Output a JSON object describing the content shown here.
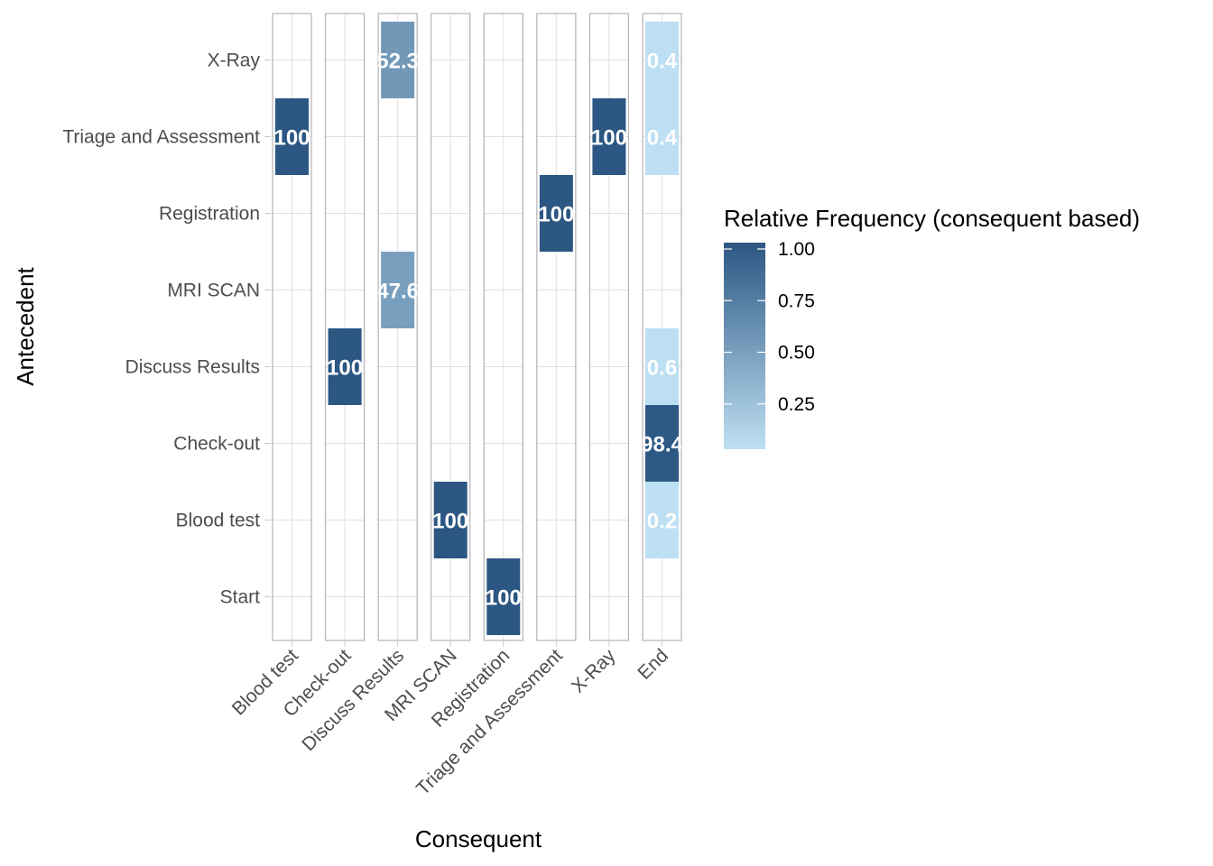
{
  "chart_data": {
    "type": "heatmap",
    "xlabel": "Consequent",
    "ylabel": "Antecedent",
    "x_categories": [
      "Blood test",
      "Check-out",
      "Discuss Results",
      "MRI SCAN",
      "Registration",
      "Triage and Assessment",
      "X-Ray",
      "End"
    ],
    "y_categories": [
      "Start",
      "Blood test",
      "Check-out",
      "Discuss Results",
      "MRI SCAN",
      "Registration",
      "Triage and Assessment",
      "X-Ray"
    ],
    "cells": [
      {
        "x": "Blood test",
        "y": "Triage and Assessment",
        "value": 1.0,
        "label": "100"
      },
      {
        "x": "Check-out",
        "y": "Discuss Results",
        "value": 1.0,
        "label": "100"
      },
      {
        "x": "Discuss Results",
        "y": "X-Ray",
        "value": 0.523,
        "label": "52.3"
      },
      {
        "x": "Discuss Results",
        "y": "MRI SCAN",
        "value": 0.476,
        "label": "47.6"
      },
      {
        "x": "MRI SCAN",
        "y": "Blood test",
        "value": 1.0,
        "label": "100"
      },
      {
        "x": "Registration",
        "y": "Start",
        "value": 1.0,
        "label": "100"
      },
      {
        "x": "Triage and Assessment",
        "y": "Registration",
        "value": 1.0,
        "label": "100"
      },
      {
        "x": "X-Ray",
        "y": "Triage and Assessment",
        "value": 1.0,
        "label": "100"
      },
      {
        "x": "End",
        "y": "X-Ray",
        "value": 0.004,
        "label": "0.4"
      },
      {
        "x": "End",
        "y": "Triage and Assessment",
        "value": 0.004,
        "label": "0.4"
      },
      {
        "x": "End",
        "y": "Discuss Results",
        "value": 0.006,
        "label": "0.6"
      },
      {
        "x": "End",
        "y": "Check-out",
        "value": 0.984,
        "label": "98.4"
      },
      {
        "x": "End",
        "y": "Blood test",
        "value": 0.002,
        "label": "0.2"
      }
    ],
    "legend": {
      "title": "Relative Frequency (consequent based)",
      "ticks": [
        1.0,
        0.75,
        0.5,
        0.25
      ],
      "tick_labels": [
        "1.00",
        "0.75",
        "0.50",
        "0.25"
      ],
      "range": [
        0,
        1
      ],
      "placement": "right"
    },
    "colors": {
      "low": "#bee0f3",
      "high": "#2c5783",
      "panel_border": "#b3b3b3",
      "grid": "#e0e0e0",
      "cell_text": "#ffffff"
    },
    "grid": true
  }
}
